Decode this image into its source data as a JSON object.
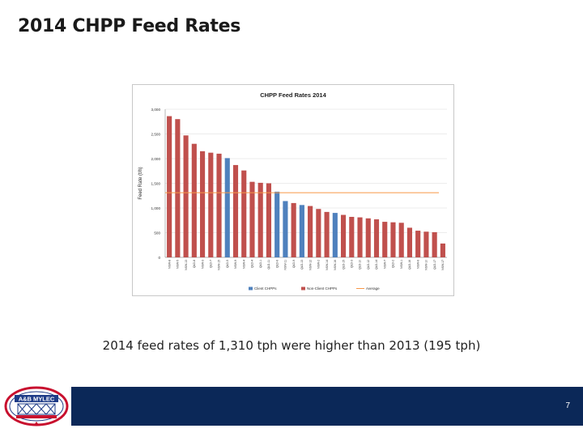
{
  "slide": {
    "title": "2014 CHPP Feed Rates",
    "caption": "2014 feed rates of 1,310 tph were higher than 2013 (195 tph)",
    "page_number": "7",
    "logo_text": "A&B MYLEC"
  },
  "chart_data": {
    "type": "bar",
    "title": "CHPP Feed Rates 2014",
    "ylabel": "Feed Rate (t/h)",
    "xlabel": "",
    "ylim": [
      0,
      3000
    ],
    "yticks": [
      0,
      500,
      1000,
      1500,
      2000,
      2500,
      3000
    ],
    "ytick_labels": [
      "0",
      "500",
      "1,000",
      "1,500",
      "2,000",
      "2,500",
      "3,000"
    ],
    "grid": true,
    "legend_position": "bottom",
    "categories": [
      "NSW-8",
      "NSW-5",
      "NSW-13",
      "QLD-8",
      "NSW-3",
      "QLD-7",
      "NSW-15",
      "QLD-5",
      "NSW-9",
      "NSW-4",
      "QLD-4",
      "QLD-1",
      "QLD-11",
      "QLD-6",
      "NSW-11",
      "QLD-9",
      "QLD-13",
      "NSW-12",
      "NSW-2",
      "NSW-14",
      "NSW-16",
      "QLD-15",
      "QLD-3",
      "QLD-10",
      "QLD-12",
      "QLD-14",
      "NSW-7",
      "QLD-2",
      "NSW-1",
      "QLD-16",
      "NSW-6",
      "NSW-10",
      "QLD-17",
      "NSW-17"
    ],
    "values": [
      2860,
      2800,
      2470,
      2300,
      2150,
      2120,
      2100,
      2010,
      1870,
      1760,
      1530,
      1510,
      1500,
      1330,
      1140,
      1100,
      1060,
      1040,
      980,
      920,
      900,
      860,
      820,
      810,
      790,
      770,
      720,
      710,
      700,
      600,
      540,
      520,
      510,
      280
    ],
    "groups": [
      "non",
      "non",
      "non",
      "non",
      "non",
      "non",
      "non",
      "client",
      "non",
      "non",
      "non",
      "non",
      "non",
      "client",
      "client",
      "non",
      "client",
      "non",
      "non",
      "non",
      "client",
      "non",
      "non",
      "non",
      "non",
      "non",
      "non",
      "non",
      "non",
      "non",
      "non",
      "non",
      "non",
      "non"
    ],
    "average": 1310,
    "series": [
      {
        "name": "Client CHPPs",
        "color": "#4f81bd"
      },
      {
        "name": "Non-Client CHPPs",
        "color": "#c0504d"
      },
      {
        "name": "Average",
        "color": "#f79646"
      }
    ]
  }
}
